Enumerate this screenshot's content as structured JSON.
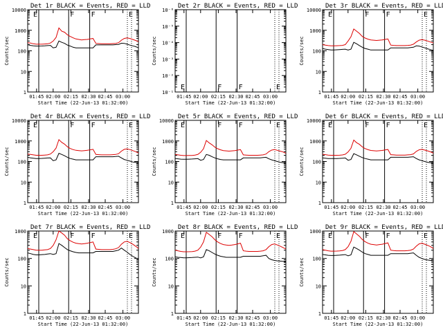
{
  "figure": {
    "background": "#ffffff",
    "series_colors": {
      "events": "#000000",
      "lld": "#dd0000"
    }
  },
  "chart_data": [
    {
      "type": "line",
      "id": "det1",
      "title": "Det 1r BLACK = Events, RED = LLD",
      "xlabel": "Start Time (22-Jun-13 01:32:00)",
      "ylabel": "Counts/sec",
      "x_ticks": [
        "01:45",
        "02:00",
        "02:15",
        "02:30",
        "02:45",
        "03:00"
      ],
      "y_ticks": [
        "1",
        "10",
        "100",
        "1000",
        "10000"
      ],
      "ylim": [
        1,
        10000
      ],
      "markers": [
        {
          "label": "E",
          "style": "solid"
        },
        {
          "label": "F",
          "style": "solid"
        },
        {
          "label": "F",
          "style": "solid"
        },
        {
          "label": "E",
          "style": "dotted"
        }
      ],
      "series": [
        {
          "name": "Events",
          "color": "black",
          "values": [
            200,
            185,
            175,
            170,
            170,
            172,
            175,
            180,
            185,
            140,
            150,
            300,
            260,
            230,
            190,
            170,
            150,
            140,
            140,
            140,
            140,
            140,
            140,
            140,
            195,
            195,
            195,
            195,
            195,
            195,
            195,
            200,
            205,
            235,
            230,
            210,
            190,
            175,
            160,
            140
          ]
        },
        {
          "name": "LLD",
          "color": "red",
          "values": [
            250,
            240,
            220,
            210,
            210,
            210,
            215,
            220,
            240,
            300,
            450,
            1300,
            900,
            800,
            600,
            500,
            430,
            380,
            360,
            340,
            350,
            360,
            380,
            400,
            230,
            225,
            220,
            220,
            220,
            220,
            225,
            230,
            250,
            330,
            400,
            430,
            400,
            360,
            320,
            280
          ]
        }
      ]
    },
    {
      "type": "line",
      "id": "det2",
      "title": "Det 2r BLACK = Events, RED = LLD",
      "xlabel": "Start Time (22-Jun-13 01:32:00)",
      "ylabel": "Counts/sec",
      "x_ticks": [
        "01:45",
        "02:00",
        "02:15",
        "02:30",
        "02:45",
        "03:00"
      ],
      "y_ticks": [
        "10⁻¹",
        "10⁻²",
        "10⁻³",
        "10⁻⁴",
        "10⁻⁵",
        "10⁻⁶"
      ],
      "ylim": [
        1,
        1e-06
      ],
      "markers": [
        {
          "label": "E",
          "style": "solid"
        },
        {
          "label": "F",
          "style": "solid"
        },
        {
          "label": "F",
          "style": "solid"
        },
        {
          "label": "E",
          "style": "dotted"
        }
      ],
      "series": []
    },
    {
      "type": "line",
      "id": "det3",
      "title": "Det 3r BLACK = Events, RED = LLD",
      "xlabel": "Start Time (22-Jun-13 01:32:00)",
      "ylabel": "Counts/sec",
      "x_ticks": [
        "01:45",
        "02:00",
        "02:15",
        "02:30",
        "02:45",
        "03:00"
      ],
      "y_ticks": [
        "1",
        "10",
        "100",
        "1000",
        "10000"
      ],
      "ylim": [
        1,
        10000
      ],
      "markers": [
        {
          "label": "E",
          "style": "solid"
        },
        {
          "label": "F",
          "style": "solid"
        },
        {
          "label": "F",
          "style": "solid"
        },
        {
          "label": "E",
          "style": "dotted"
        }
      ],
      "series": [
        {
          "name": "Events",
          "color": "black",
          "values": [
            130,
            120,
            115,
            110,
            110,
            112,
            115,
            118,
            120,
            110,
            120,
            260,
            220,
            180,
            150,
            130,
            120,
            110,
            110,
            110,
            110,
            110,
            110,
            110,
            140,
            140,
            140,
            140,
            140,
            140,
            140,
            145,
            150,
            175,
            170,
            155,
            140,
            125,
            115,
            105
          ]
        },
        {
          "name": "LLD",
          "color": "red",
          "values": [
            200,
            190,
            180,
            175,
            175,
            178,
            180,
            185,
            200,
            300,
            480,
            1150,
            900,
            700,
            500,
            420,
            370,
            340,
            330,
            320,
            330,
            340,
            360,
            380,
            190,
            185,
            180,
            180,
            180,
            180,
            185,
            190,
            210,
            270,
            330,
            350,
            330,
            300,
            270,
            240
          ]
        }
      ]
    },
    {
      "type": "line",
      "id": "det4",
      "title": "Det 4r BLACK = Events, RED = LLD",
      "xlabel": "Start Time (22-Jun-13 01:32:00)",
      "ylabel": "Counts/sec",
      "x_ticks": [
        "01:45",
        "02:00",
        "02:15",
        "02:30",
        "02:45",
        "03:00"
      ],
      "y_ticks": [
        "1",
        "10",
        "100",
        "1000",
        "10000"
      ],
      "ylim": [
        1,
        10000
      ],
      "markers": [
        {
          "label": "E",
          "style": "solid"
        },
        {
          "label": "F",
          "style": "solid"
        },
        {
          "label": "F",
          "style": "solid"
        },
        {
          "label": "E",
          "style": "dotted"
        }
      ],
      "series": [
        {
          "name": "Events",
          "color": "black",
          "values": [
            160,
            150,
            145,
            140,
            140,
            142,
            145,
            148,
            150,
            110,
            120,
            250,
            220,
            190,
            160,
            140,
            130,
            120,
            120,
            120,
            120,
            120,
            120,
            120,
            170,
            170,
            170,
            170,
            170,
            170,
            170,
            175,
            180,
            150,
            125,
            115,
            105,
            95,
            90,
            85
          ]
        },
        {
          "name": "LLD",
          "color": "red",
          "values": [
            230,
            220,
            210,
            200,
            200,
            200,
            205,
            210,
            230,
            300,
            450,
            1150,
            850,
            700,
            520,
            430,
            380,
            350,
            340,
            330,
            340,
            350,
            370,
            390,
            220,
            215,
            210,
            210,
            210,
            210,
            215,
            220,
            240,
            320,
            390,
            410,
            380,
            340,
            300,
            260
          ]
        }
      ]
    },
    {
      "type": "line",
      "id": "det5",
      "title": "Det 5r BLACK = Events, RED = LLD",
      "xlabel": "Start Time (22-Jun-13 01:32:00)",
      "ylabel": "Counts/sec",
      "x_ticks": [
        "01:45",
        "02:00",
        "02:15",
        "02:30",
        "02:45",
        "03:00"
      ],
      "y_ticks": [
        "1",
        "10",
        "100",
        "1000",
        "10000"
      ],
      "ylim": [
        1,
        10000
      ],
      "markers": [
        {
          "label": "E",
          "style": "solid"
        },
        {
          "label": "F",
          "style": "solid"
        },
        {
          "label": "F",
          "style": "solid"
        },
        {
          "label": "E",
          "style": "dotted"
        }
      ],
      "series": [
        {
          "name": "Events",
          "color": "black",
          "values": [
            140,
            135,
            130,
            128,
            128,
            130,
            132,
            135,
            138,
            115,
            125,
            220,
            200,
            170,
            150,
            135,
            125,
            120,
            120,
            120,
            120,
            120,
            120,
            120,
            150,
            150,
            150,
            150,
            150,
            150,
            150,
            155,
            160,
            135,
            120,
            110,
            100,
            92,
            88,
            82
          ]
        },
        {
          "name": "LLD",
          "color": "red",
          "values": [
            220,
            210,
            200,
            195,
            195,
            196,
            198,
            205,
            220,
            280,
            420,
            1050,
            800,
            650,
            500,
            420,
            370,
            340,
            330,
            320,
            330,
            340,
            360,
            380,
            210,
            205,
            200,
            200,
            200,
            200,
            205,
            210,
            230,
            300,
            360,
            380,
            350,
            320,
            290,
            250
          ]
        }
      ]
    },
    {
      "type": "line",
      "id": "det6",
      "title": "Det 6r BLACK = Events, RED = LLD",
      "xlabel": "Start Time (22-Jun-13 01:32:00)",
      "ylabel": "Counts/sec",
      "x_ticks": [
        "01:45",
        "02:00",
        "02:15",
        "02:30",
        "02:45",
        "03:00"
      ],
      "y_ticks": [
        "1",
        "10",
        "100",
        "1000",
        "10000"
      ],
      "ylim": [
        1,
        10000
      ],
      "markers": [
        {
          "label": "E",
          "style": "solid"
        },
        {
          "label": "F",
          "style": "solid"
        },
        {
          "label": "F",
          "style": "solid"
        },
        {
          "label": "E",
          "style": "dotted"
        }
      ],
      "series": [
        {
          "name": "Events",
          "color": "black",
          "values": [
            150,
            145,
            140,
            138,
            138,
            140,
            142,
            145,
            148,
            115,
            125,
            240,
            210,
            180,
            155,
            140,
            130,
            120,
            120,
            120,
            120,
            120,
            120,
            120,
            160,
            160,
            160,
            160,
            160,
            160,
            160,
            165,
            170,
            140,
            120,
            110,
            100,
            92,
            88,
            82
          ]
        },
        {
          "name": "LLD",
          "color": "red",
          "values": [
            225,
            215,
            205,
            200,
            200,
            200,
            202,
            208,
            225,
            290,
            440,
            1100,
            820,
            680,
            510,
            425,
            375,
            345,
            335,
            325,
            335,
            345,
            365,
            385,
            215,
            210,
            205,
            205,
            205,
            205,
            210,
            215,
            235,
            310,
            370,
            390,
            360,
            330,
            295,
            255
          ]
        }
      ]
    },
    {
      "type": "line",
      "id": "det7",
      "title": "Det 7r BLACK = Events, RED = LLD",
      "xlabel": "Start Time (22-Jun-13 01:32:00)",
      "ylabel": "Counts/sec",
      "x_ticks": [
        "01:45",
        "02:00",
        "02:15",
        "02:30",
        "02:45",
        "03:00"
      ],
      "y_ticks": [
        "1",
        "10",
        "100",
        "1000"
      ],
      "ylim": [
        1,
        1000
      ],
      "markers": [
        {
          "label": "E",
          "style": "solid"
        },
        {
          "label": "F",
          "style": "solid"
        },
        {
          "label": "F",
          "style": "solid"
        },
        {
          "label": "E",
          "style": "dotted"
        }
      ],
      "series": [
        {
          "name": "Events",
          "color": "black",
          "values": [
            160,
            150,
            140,
            135,
            135,
            138,
            140,
            145,
            150,
            140,
            150,
            350,
            300,
            250,
            210,
            190,
            175,
            165,
            160,
            160,
            160,
            160,
            160,
            160,
            180,
            180,
            180,
            180,
            180,
            180,
            180,
            190,
            200,
            240,
            200,
            170,
            140,
            120,
            105,
            95
          ]
        },
        {
          "name": "LLD",
          "color": "red",
          "values": [
            230,
            220,
            210,
            200,
            200,
            200,
            205,
            210,
            230,
            300,
            480,
            1000,
            850,
            700,
            520,
            440,
            390,
            360,
            345,
            335,
            345,
            360,
            380,
            400,
            220,
            215,
            210,
            210,
            210,
            210,
            215,
            225,
            250,
            330,
            400,
            420,
            380,
            330,
            280,
            230
          ]
        }
      ]
    },
    {
      "type": "line",
      "id": "det8",
      "title": "Det 8r BLACK = Events, RED = LLD",
      "xlabel": "Start Time (22-Jun-13 01:32:00)",
      "ylabel": "Counts/sec",
      "x_ticks": [
        "01:45",
        "02:00",
        "02:15",
        "02:30",
        "02:45",
        "03:00"
      ],
      "y_ticks": [
        "1",
        "10",
        "100",
        "1000"
      ],
      "ylim": [
        1,
        1000
      ],
      "markers": [
        {
          "label": "E",
          "style": "solid"
        },
        {
          "label": "F",
          "style": "solid"
        },
        {
          "label": "F",
          "style": "solid"
        },
        {
          "label": "E",
          "style": "dotted"
        }
      ],
      "series": [
        {
          "name": "Events",
          "color": "black",
          "values": [
            115,
            110,
            108,
            105,
            105,
            107,
            108,
            110,
            112,
            105,
            115,
            210,
            190,
            165,
            145,
            130,
            120,
            115,
            110,
            110,
            110,
            110,
            110,
            110,
            120,
            120,
            120,
            120,
            120,
            120,
            120,
            125,
            130,
            100,
            90,
            85,
            82,
            80,
            78,
            75
          ]
        },
        {
          "name": "LLD",
          "color": "red",
          "values": [
            200,
            190,
            180,
            175,
            175,
            176,
            178,
            185,
            200,
            260,
            400,
            900,
            750,
            620,
            480,
            400,
            350,
            320,
            310,
            300,
            310,
            320,
            340,
            360,
            190,
            185,
            180,
            180,
            180,
            180,
            185,
            190,
            210,
            270,
            320,
            340,
            310,
            280,
            250,
            220
          ]
        }
      ]
    },
    {
      "type": "line",
      "id": "det9",
      "title": "Det 9r BLACK = Events, RED = LLD",
      "xlabel": "Start Time (22-Jun-13 01:32:00)",
      "ylabel": "Counts/sec",
      "x_ticks": [
        "01:45",
        "02:00",
        "02:15",
        "02:30",
        "02:45",
        "03:00"
      ],
      "y_ticks": [
        "1",
        "10",
        "100",
        "1000"
      ],
      "ylim": [
        1,
        1000
      ],
      "markers": [
        {
          "label": "E",
          "style": "solid"
        },
        {
          "label": "F",
          "style": "solid"
        },
        {
          "label": "F",
          "style": "solid"
        },
        {
          "label": "E",
          "style": "dotted"
        }
      ],
      "series": [
        {
          "name": "Events",
          "color": "black",
          "values": [
            140,
            135,
            130,
            128,
            128,
            130,
            132,
            135,
            138,
            125,
            135,
            260,
            230,
            200,
            170,
            150,
            140,
            130,
            130,
            130,
            130,
            130,
            130,
            130,
            150,
            150,
            150,
            150,
            150,
            150,
            150,
            155,
            160,
            130,
            110,
            100,
            92,
            88,
            85,
            80
          ]
        },
        {
          "name": "LLD",
          "color": "red",
          "values": [
            210,
            200,
            190,
            185,
            185,
            186,
            188,
            195,
            210,
            270,
            420,
            950,
            780,
            640,
            490,
            410,
            360,
            330,
            320,
            310,
            320,
            330,
            350,
            370,
            200,
            195,
            190,
            190,
            190,
            190,
            195,
            200,
            220,
            280,
            340,
            360,
            330,
            300,
            270,
            230
          ]
        }
      ]
    }
  ]
}
